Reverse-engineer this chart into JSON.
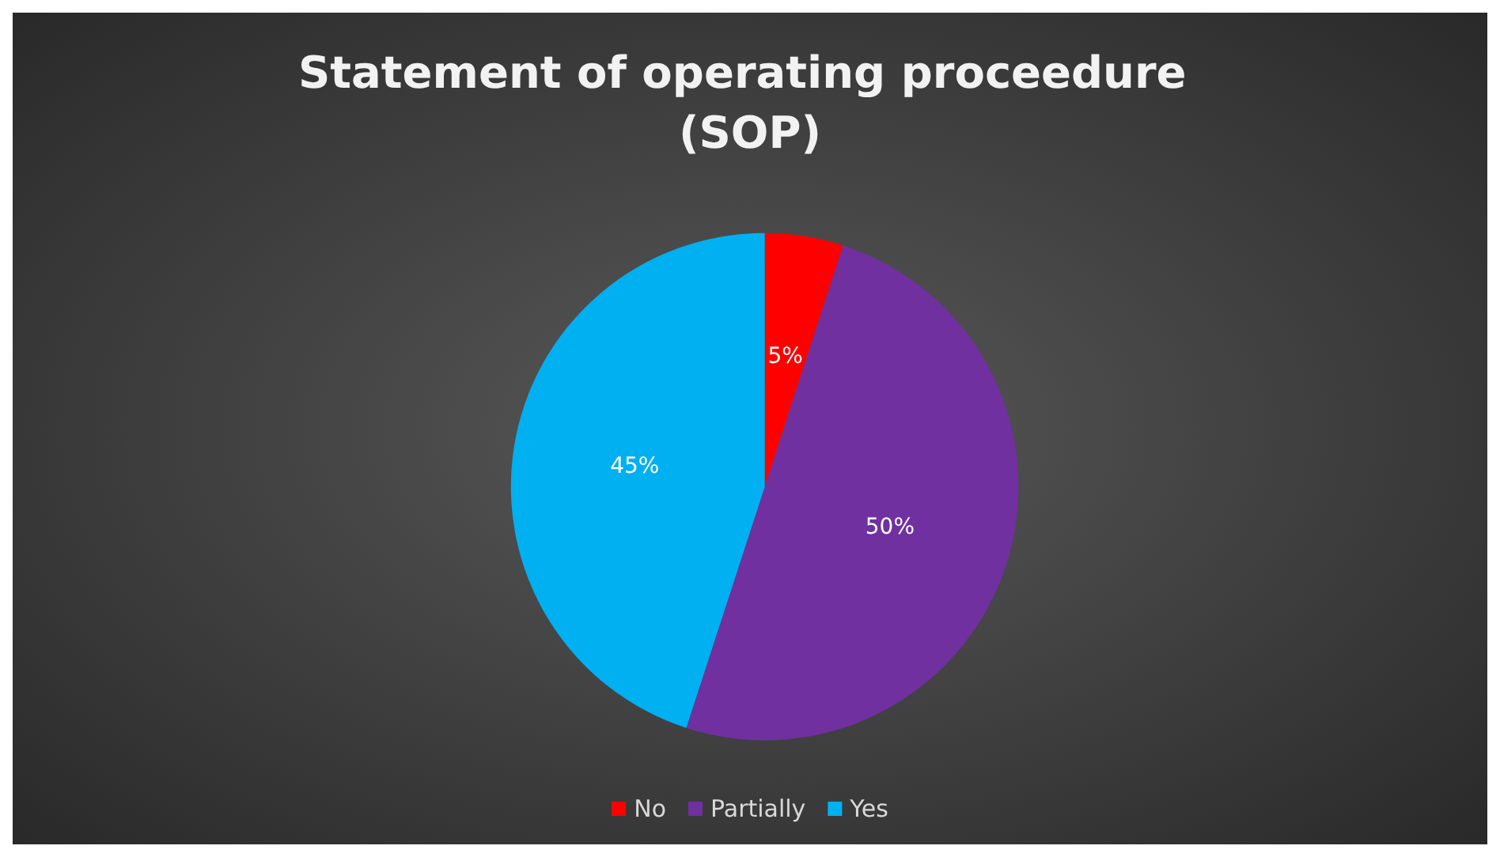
{
  "chart_data": {
    "type": "pie",
    "title": "Statement of operating proceedure (SOP)",
    "categories": [
      "No",
      "Partially",
      "Yes"
    ],
    "values": [
      5,
      50,
      45
    ],
    "colors": [
      "#ff0000",
      "#7030a0",
      "#00b0f0"
    ],
    "value_labels": [
      "5%",
      "50%",
      "45%"
    ],
    "legend": "bottom"
  }
}
